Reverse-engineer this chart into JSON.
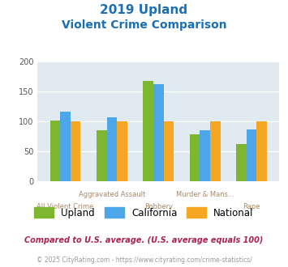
{
  "title_line1": "2019 Upland",
  "title_line2": "Violent Crime Comparison",
  "upland": [
    102,
    86,
    168,
    78,
    63
  ],
  "california": [
    117,
    107,
    162,
    86,
    87
  ],
  "national": [
    100,
    100,
    100,
    100,
    100
  ],
  "upland_color": "#7db72f",
  "california_color": "#4da6e8",
  "national_color": "#f5a623",
  "bg_color": "#e0eaf0",
  "title_color": "#1a6fb5",
  "ylim": [
    0,
    200
  ],
  "yticks": [
    0,
    50,
    100,
    150,
    200
  ],
  "ax_labels_line1": [
    "",
    "Aggravated Assault",
    "",
    "Murder & Mans...",
    ""
  ],
  "ax_labels_line2": [
    "All Violent Crime",
    "",
    "Robbery",
    "",
    "Rape"
  ],
  "footnote1": "Compared to U.S. average. (U.S. average equals 100)",
  "footnote2": "© 2025 CityRating.com - https://www.cityrating.com/crime-statistics/",
  "footnote1_color": "#aa2255",
  "footnote2_color": "#999999",
  "legend_labels": [
    "Upland",
    "California",
    "National"
  ]
}
